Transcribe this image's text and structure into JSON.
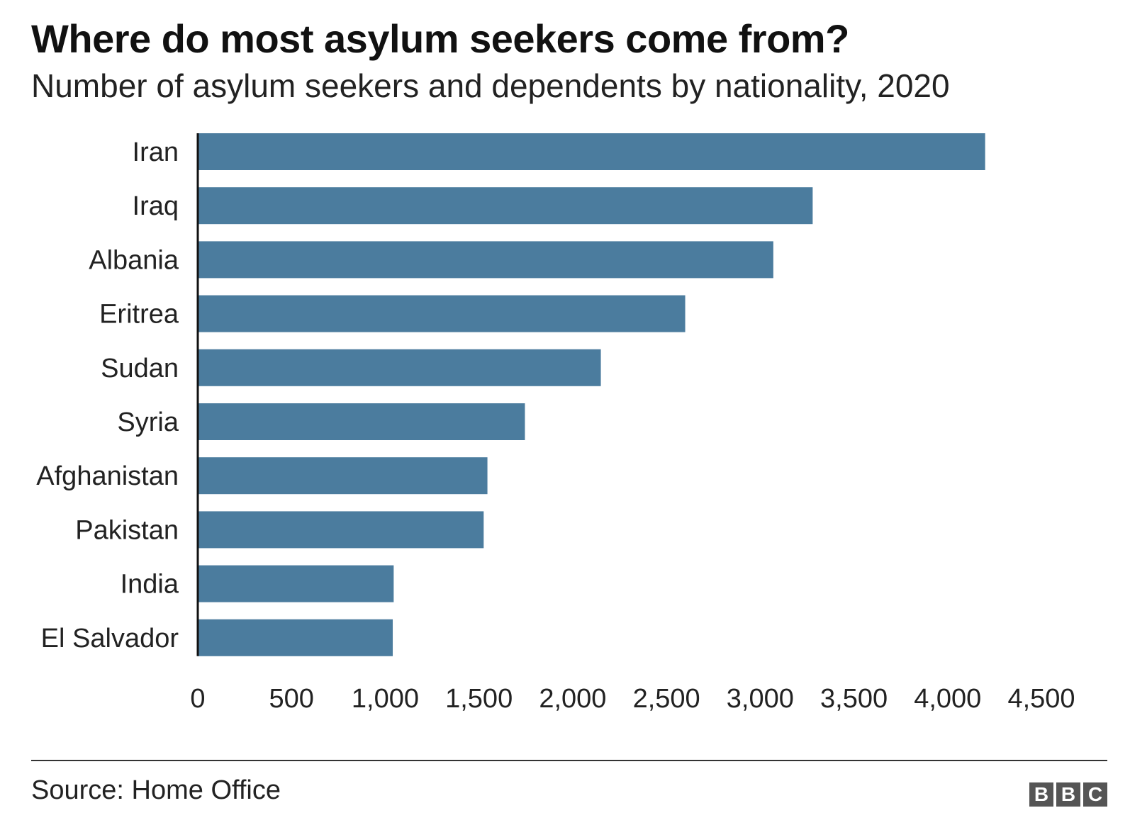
{
  "header": {
    "title": "Where do most asylum seekers come from?",
    "subtitle": "Number of asylum seekers and dependents by nationality, 2020"
  },
  "footer": {
    "source": "Source: Home Office",
    "logo_letters": [
      "B",
      "B",
      "C"
    ]
  },
  "colors": {
    "bar": "#4b7c9e",
    "axis": "#111111",
    "text": "#222222"
  },
  "chart_data": {
    "type": "bar",
    "orientation": "horizontal",
    "categories": [
      "Iran",
      "Iraq",
      "Albania",
      "Eritrea",
      "Sudan",
      "Syria",
      "Afghanistan",
      "Pakistan",
      "India",
      "El Salvador"
    ],
    "values": [
      4200,
      3280,
      3070,
      2600,
      2150,
      1745,
      1545,
      1525,
      1045,
      1040
    ],
    "xlim": [
      0,
      4500
    ],
    "xticks": [
      0,
      500,
      1000,
      1500,
      2000,
      2500,
      3000,
      3500,
      4000,
      4500
    ],
    "xtick_labels": [
      "0",
      "500",
      "1,000",
      "1,500",
      "2,000",
      "2,500",
      "3,000",
      "3,500",
      "4,000",
      "4,500"
    ],
    "title": "Where do most asylum seekers come from?",
    "subtitle": "Number of asylum seekers and dependents by nationality, 2020",
    "xlabel": "",
    "ylabel": "",
    "grid": false,
    "legend": "none"
  }
}
